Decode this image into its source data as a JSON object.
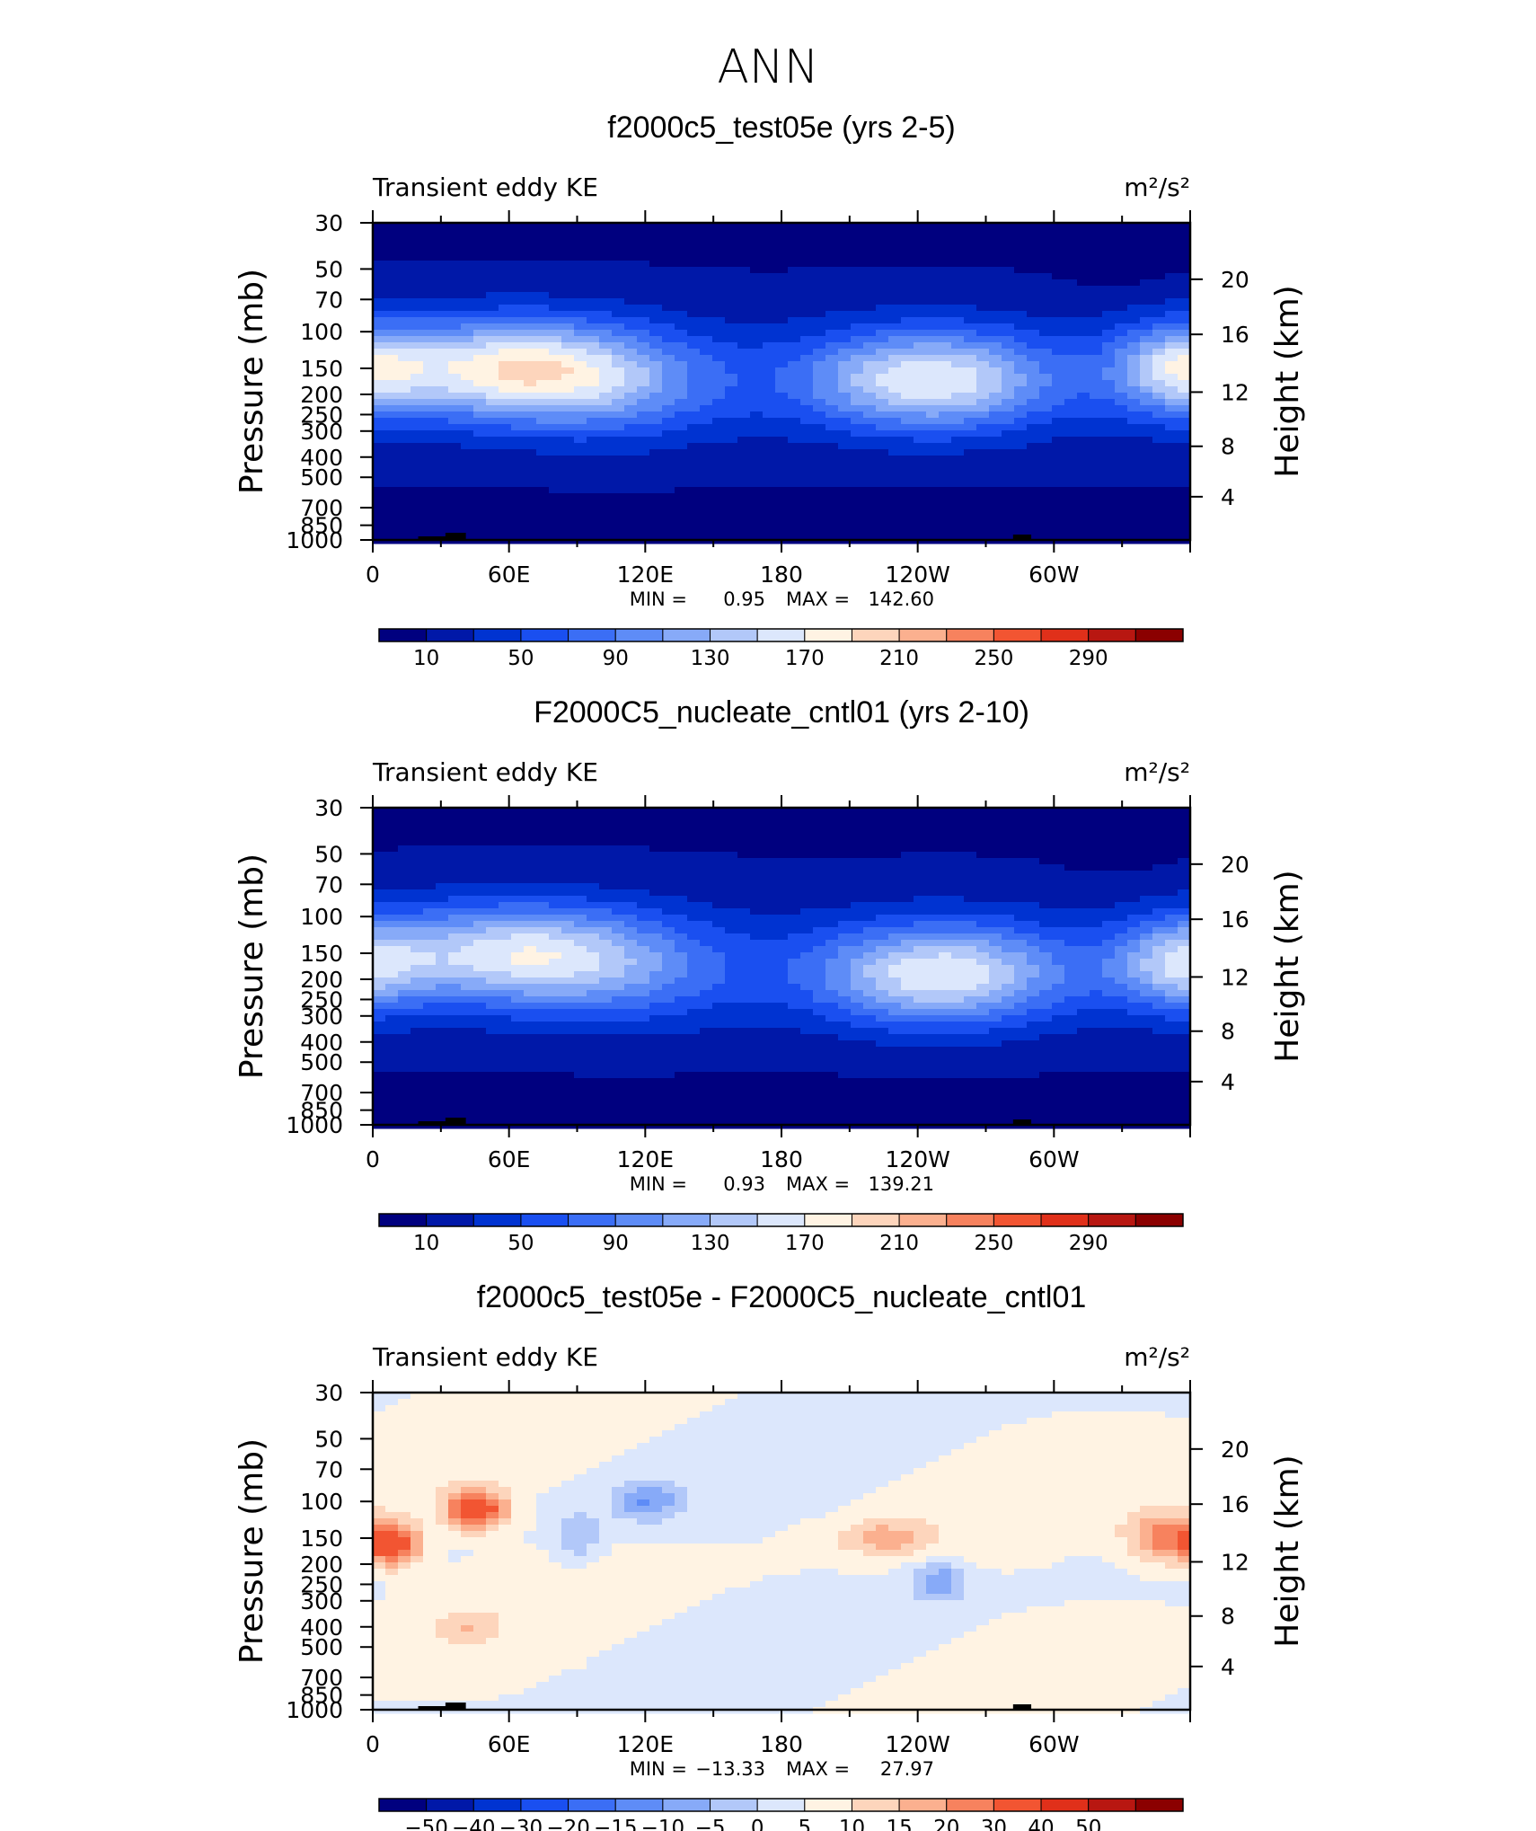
{
  "figure": {
    "title": "ANN"
  },
  "chart_data": [
    {
      "type": "heatmap",
      "title": "f2000c5_test05e (yrs 2-5)",
      "left_label": "Transient eddy KE",
      "units_label": "m²/s²",
      "ylabel": "Pressure (mb)",
      "ylabel_right": "Height (km)",
      "x_tick_labels": [
        "0",
        "60E",
        "120E",
        "180",
        "120W",
        "60W"
      ],
      "xlim": [
        0,
        360
      ],
      "y_tick_labels": [
        "30",
        "50",
        "70",
        "100",
        "150",
        "200",
        "250",
        "300",
        "400",
        "500",
        "700",
        "850",
        "1000"
      ],
      "ylim": [
        1000,
        30
      ],
      "yscale": "log",
      "right_tick_labels": [
        "4",
        "8",
        "12",
        "16",
        "20"
      ],
      "stats": {
        "min_label": "MIN =",
        "min": "0.95",
        "max_label": "MAX =",
        "max": "142.60"
      },
      "colorbar": {
        "labels": [
          "10",
          "50",
          "90",
          "130",
          "170",
          "210",
          "250",
          "290"
        ],
        "colors": [
          "#00007f",
          "#0018a8",
          "#0033d1",
          "#1a4ff0",
          "#3b6ef5",
          "#5e8cf7",
          "#87aaf8",
          "#b2c8f9",
          "#dce7fc",
          "#fff3e3",
          "#fdd5bc",
          "#fbb08f",
          "#f7825e",
          "#f25532",
          "#e0301a",
          "#b81711",
          "#8b0000"
        ]
      },
      "surface_peaks": [
        {
          "lon": 60,
          "p": 150,
          "amp": 145,
          "slon": 55,
          "sp": 0.55
        },
        {
          "lon": 245,
          "p": 170,
          "amp": 140,
          "slon": 55,
          "sp": 0.55
        },
        {
          "lon": 355,
          "p": 150,
          "amp": 110,
          "slon": 30,
          "sp": 0.5
        },
        {
          "lon": 110,
          "p": 180,
          "amp": 60,
          "slon": 50,
          "sp": 0.6
        }
      ]
    },
    {
      "type": "heatmap",
      "title": "F2000C5_nucleate_cntl01 (yrs 2-10)",
      "left_label": "Transient eddy KE",
      "units_label": "m²/s²",
      "ylabel": "Pressure (mb)",
      "ylabel_right": "Height (km)",
      "x_tick_labels": [
        "0",
        "60E",
        "120E",
        "180",
        "120W",
        "60W"
      ],
      "xlim": [
        0,
        360
      ],
      "y_tick_labels": [
        "30",
        "50",
        "70",
        "100",
        "150",
        "200",
        "250",
        "300",
        "400",
        "500",
        "700",
        "850",
        "1000"
      ],
      "ylim": [
        1000,
        30
      ],
      "yscale": "log",
      "right_tick_labels": [
        "4",
        "8",
        "12",
        "16",
        "20"
      ],
      "stats": {
        "min_label": "MIN =",
        "min": "0.93",
        "max_label": "MAX =",
        "max": "139.21"
      },
      "colorbar": {
        "labels": [
          "10",
          "50",
          "90",
          "130",
          "170",
          "210",
          "250",
          "290"
        ],
        "colors": [
          "#00007f",
          "#0018a8",
          "#0033d1",
          "#1a4ff0",
          "#3b6ef5",
          "#5e8cf7",
          "#87aaf8",
          "#b2c8f9",
          "#dce7fc",
          "#fff3e3",
          "#fdd5bc",
          "#fbb08f",
          "#f7825e",
          "#f25532",
          "#e0301a",
          "#b81711",
          "#8b0000"
        ]
      },
      "surface_peaks": [
        {
          "lon": 60,
          "p": 150,
          "amp": 125,
          "slon": 55,
          "sp": 0.55
        },
        {
          "lon": 250,
          "p": 190,
          "amp": 140,
          "slon": 55,
          "sp": 0.55
        },
        {
          "lon": 355,
          "p": 170,
          "amp": 100,
          "slon": 30,
          "sp": 0.5
        },
        {
          "lon": 115,
          "p": 180,
          "amp": 55,
          "slon": 50,
          "sp": 0.6
        }
      ]
    },
    {
      "type": "heatmap",
      "title": "f2000c5_test05e - F2000C5_nucleate_cntl01",
      "left_label": "Transient eddy KE",
      "units_label": "m²/s²",
      "ylabel": "Pressure (mb)",
      "ylabel_right": "Height (km)",
      "x_tick_labels": [
        "0",
        "60E",
        "120E",
        "180",
        "120W",
        "60W"
      ],
      "xlim": [
        0,
        360
      ],
      "y_tick_labels": [
        "30",
        "50",
        "70",
        "100",
        "150",
        "200",
        "250",
        "300",
        "400",
        "500",
        "700",
        "850",
        "1000"
      ],
      "ylim": [
        1000,
        30
      ],
      "yscale": "log",
      "right_tick_labels": [
        "4",
        "8",
        "12",
        "16",
        "20"
      ],
      "stats": {
        "min_label": "MIN =",
        "min": "−13.33",
        "max_label": "MAX =",
        "max": "27.97"
      },
      "colorbar": {
        "labels": [
          "−50",
          "−40",
          "−30",
          "−20",
          "−15",
          "−10",
          "−5",
          "0",
          "5",
          "10",
          "15",
          "20",
          "30",
          "40",
          "50"
        ],
        "colors": [
          "#00007f",
          "#0018a8",
          "#0033d1",
          "#1a4ff0",
          "#3b6ef5",
          "#5e8cf7",
          "#87aaf8",
          "#b2c8f9",
          "#dce7fc",
          "#fff3e3",
          "#fdd5bc",
          "#fbb08f",
          "#f7825e",
          "#f25532",
          "#e0301a",
          "#b81711",
          "#8b0000"
        ]
      },
      "surface_peaks": [
        {
          "lon": 45,
          "p": 110,
          "amp": 28,
          "slon": 14,
          "sp": 0.22
        },
        {
          "lon": 10,
          "p": 160,
          "amp": 24,
          "slon": 12,
          "sp": 0.25
        },
        {
          "lon": 120,
          "p": 100,
          "amp": -13,
          "slon": 14,
          "sp": 0.2
        },
        {
          "lon": 90,
          "p": 150,
          "amp": -9,
          "slon": 10,
          "sp": 0.3
        },
        {
          "lon": 250,
          "p": 240,
          "amp": -13,
          "slon": 12,
          "sp": 0.22
        },
        {
          "lon": 225,
          "p": 150,
          "amp": 12,
          "slon": 20,
          "sp": 0.18
        },
        {
          "lon": 350,
          "p": 150,
          "amp": 20,
          "slon": 18,
          "sp": 0.3
        },
        {
          "lon": 40,
          "p": 400,
          "amp": 6,
          "slon": 10,
          "sp": 0.15
        }
      ]
    }
  ]
}
